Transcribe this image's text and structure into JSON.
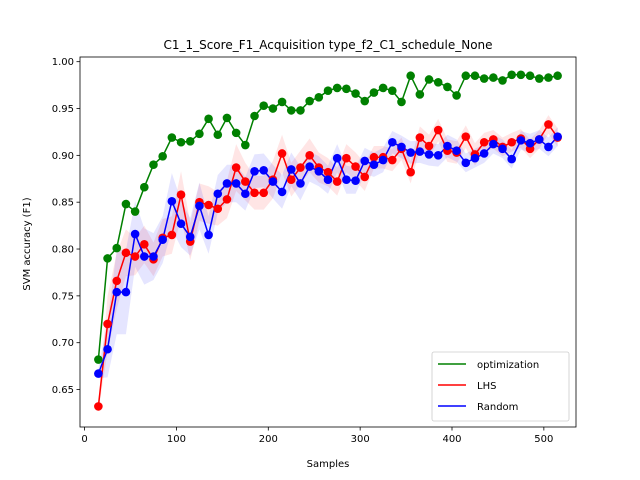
{
  "chart_data": {
    "type": "line",
    "title": "C1_1_Score_F1_Acquisition type_f2_C1_schedule_None",
    "xlabel": "Samples",
    "ylabel": "SVM accuracy (F1)",
    "xlim": [
      -5,
      535
    ],
    "ylim": [
      0.61,
      1.005
    ],
    "xticks": [
      0,
      100,
      200,
      300,
      400,
      500
    ],
    "yticks": [
      0.65,
      0.7,
      0.75,
      0.8,
      0.85,
      0.9,
      0.95,
      1.0
    ],
    "ytick_labels": [
      "0.65",
      "0.70",
      "0.75",
      "0.80",
      "0.85",
      "0.90",
      "0.95",
      "1.00"
    ],
    "legend_position": "lower-right",
    "grid": false,
    "x": [
      15,
      25,
      35,
      45,
      55,
      65,
      75,
      85,
      95,
      105,
      115,
      125,
      135,
      145,
      155,
      165,
      175,
      185,
      195,
      205,
      215,
      225,
      235,
      245,
      255,
      265,
      275,
      285,
      295,
      305,
      315,
      325,
      335,
      345,
      355,
      365,
      375,
      385,
      395,
      405,
      415,
      425,
      435,
      445,
      455,
      465,
      475,
      485,
      495,
      505,
      515
    ],
    "series": [
      {
        "name": "optimization",
        "color": "#008000",
        "values": [
          0.682,
          0.79,
          0.801,
          0.848,
          0.84,
          0.866,
          0.89,
          0.899,
          0.919,
          0.914,
          0.915,
          0.923,
          0.939,
          0.922,
          0.94,
          0.924,
          0.911,
          0.942,
          0.953,
          0.95,
          0.957,
          0.948,
          0.948,
          0.958,
          0.962,
          0.969,
          0.972,
          0.971,
          0.966,
          0.958,
          0.967,
          0.972,
          0.969,
          0.957,
          0.985,
          0.965,
          0.981,
          0.978,
          0.973,
          0.964,
          0.985,
          0.985,
          0.982,
          0.983,
          0.98,
          0.986,
          0.986,
          0.985,
          0.982,
          0.983,
          0.985
        ],
        "band": null
      },
      {
        "name": "LHS",
        "color": "#ff0000",
        "values": [
          0.632,
          0.72,
          0.766,
          0.796,
          0.792,
          0.805,
          0.789,
          0.812,
          0.815,
          0.858,
          0.808,
          0.85,
          0.847,
          0.843,
          0.853,
          0.887,
          0.872,
          0.86,
          0.86,
          0.874,
          0.902,
          0.874,
          0.887,
          0.9,
          0.887,
          0.882,
          0.872,
          0.897,
          0.888,
          0.877,
          0.898,
          0.898,
          0.895,
          0.907,
          0.882,
          0.919,
          0.91,
          0.927,
          0.905,
          0.903,
          0.92,
          0.901,
          0.914,
          0.917,
          0.909,
          0.914,
          0.918,
          0.907,
          0.917,
          0.933,
          0.919
        ],
        "band": [
          0.005,
          0.03,
          0.03,
          0.025,
          0.02,
          0.02,
          0.018,
          0.02,
          0.02,
          0.025,
          0.02,
          0.02,
          0.02,
          0.018,
          0.02,
          0.025,
          0.02,
          0.018,
          0.018,
          0.02,
          0.02,
          0.018,
          0.018,
          0.018,
          0.016,
          0.015,
          0.015,
          0.015,
          0.015,
          0.015,
          0.012,
          0.012,
          0.012,
          0.012,
          0.012,
          0.012,
          0.012,
          0.012,
          0.012,
          0.012,
          0.012,
          0.012,
          0.01,
          0.01,
          0.01,
          0.01,
          0.01,
          0.01,
          0.01,
          0.01,
          0.01
        ]
      },
      {
        "name": "Random",
        "color": "#0000ff",
        "values": [
          0.667,
          0.693,
          0.754,
          0.754,
          0.816,
          0.792,
          0.792,
          0.81,
          0.851,
          0.827,
          0.813,
          0.846,
          0.815,
          0.859,
          0.87,
          0.87,
          0.859,
          0.883,
          0.884,
          0.872,
          0.861,
          0.885,
          0.87,
          0.888,
          0.883,
          0.874,
          0.897,
          0.874,
          0.873,
          0.894,
          0.89,
          0.895,
          0.914,
          0.909,
          0.903,
          0.904,
          0.901,
          0.9,
          0.91,
          0.905,
          0.892,
          0.897,
          0.902,
          0.912,
          0.907,
          0.896,
          0.916,
          0.913,
          0.917,
          0.909,
          0.92
        ],
        "band": [
          0.005,
          0.03,
          0.045,
          0.045,
          0.035,
          0.03,
          0.025,
          0.025,
          0.03,
          0.025,
          0.02,
          0.025,
          0.02,
          0.02,
          0.02,
          0.02,
          0.018,
          0.018,
          0.018,
          0.018,
          0.018,
          0.018,
          0.018,
          0.016,
          0.016,
          0.015,
          0.015,
          0.015,
          0.014,
          0.014,
          0.013,
          0.013,
          0.012,
          0.012,
          0.012,
          0.012,
          0.012,
          0.012,
          0.012,
          0.012,
          0.01,
          0.01,
          0.01,
          0.01,
          0.01,
          0.01,
          0.01,
          0.01,
          0.01,
          0.01,
          0.01
        ]
      }
    ]
  }
}
